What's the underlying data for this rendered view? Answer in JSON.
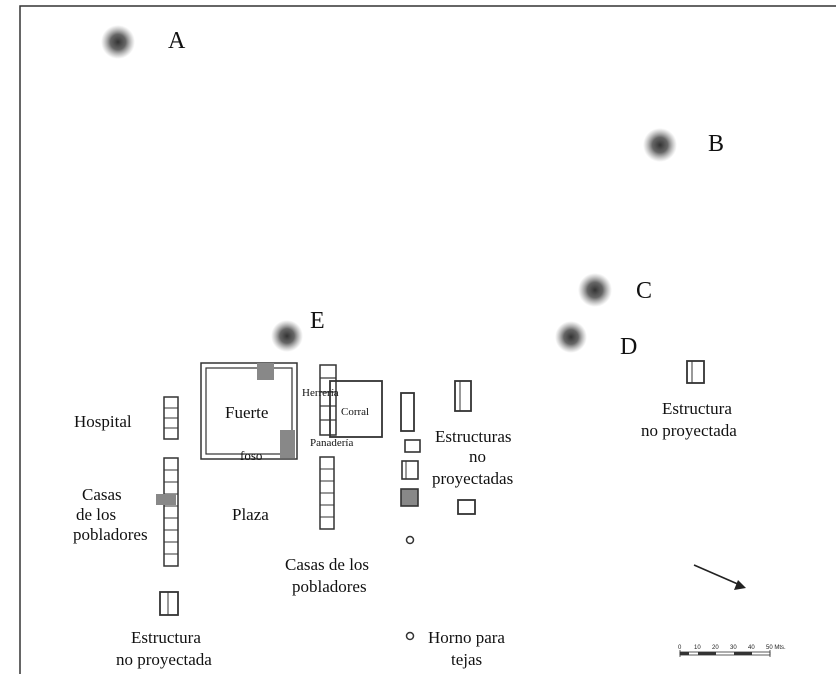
{
  "points": {
    "A": "A",
    "B": "B",
    "C": "C",
    "D": "D",
    "E": "E"
  },
  "labels": {
    "fuerte": "Fuerte",
    "foso": "foso",
    "herreria": "Herrería",
    "corral": "Corral",
    "panaderia": "Panadería",
    "hospital": "Hospital",
    "plaza": "Plaza",
    "casas_left": [
      "Casas",
      "de  los",
      "pobladores"
    ],
    "casas_center": [
      "Casas  de los",
      "pobladores"
    ],
    "estructuras_center": [
      "Estructuras",
      "no",
      "proyectadas"
    ],
    "estructura_right": [
      "Estructura",
      "no proyectada"
    ],
    "estructura_bottom": [
      "Estructura",
      "no proyectada"
    ],
    "horno": [
      "Horno para",
      "tejas"
    ]
  },
  "scale": {
    "ticks": [
      "0",
      "10",
      "20",
      "30",
      "40",
      "50 Mts."
    ]
  },
  "colors": {
    "marker": "#444444",
    "fill_gray": "#888888",
    "frame": "#333333"
  }
}
